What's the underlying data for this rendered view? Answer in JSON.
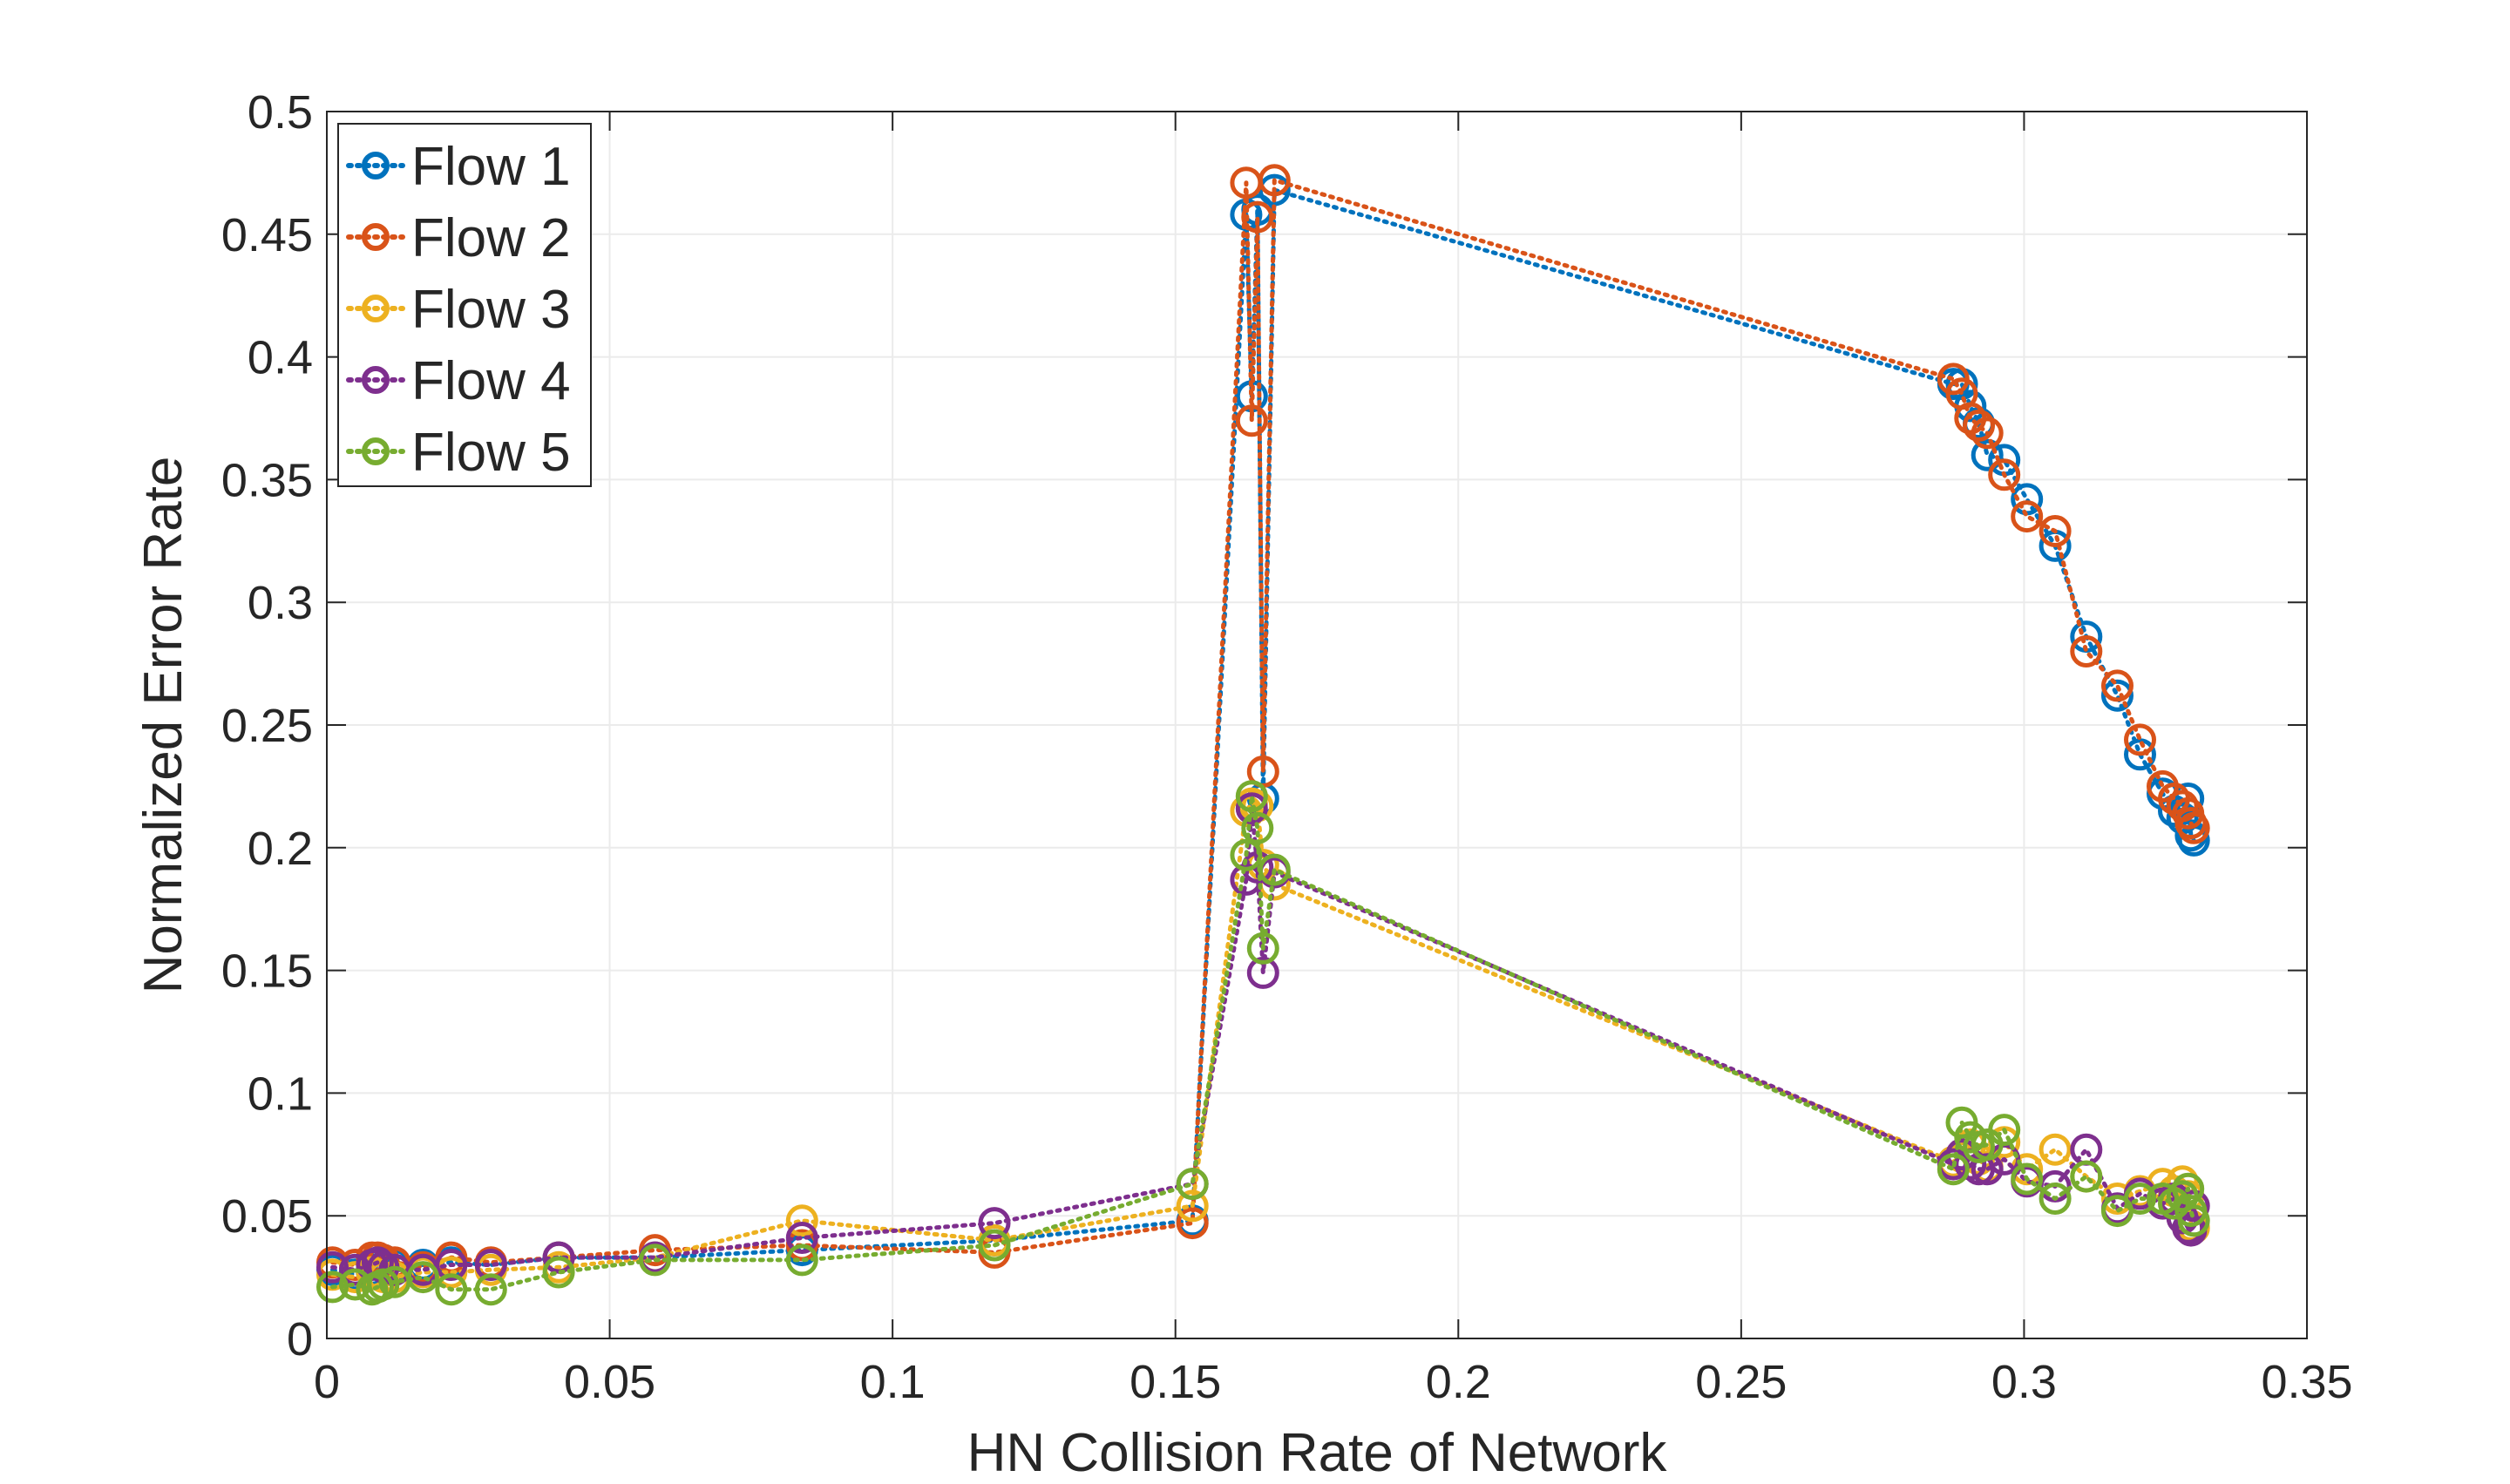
{
  "chart_data": {
    "type": "line",
    "xlabel": "HN Collision Rate of Network",
    "ylabel": "Normalized Error Rate",
    "xlim": [
      0,
      0.35
    ],
    "ylim": [
      0,
      0.5
    ],
    "xticks": [
      0,
      0.05,
      0.1,
      0.15,
      0.2,
      0.25,
      0.3,
      0.35
    ],
    "xtick_labels": [
      "0",
      "0.05",
      "0.1",
      "0.15",
      "0.2",
      "0.25",
      "0.3",
      "0.35"
    ],
    "yticks": [
      0,
      0.05,
      0.1,
      0.15,
      0.2,
      0.25,
      0.3,
      0.35,
      0.4,
      0.45,
      0.5
    ],
    "ytick_labels": [
      "0",
      "0.05",
      "0.1",
      "0.15",
      "0.2",
      "0.25",
      "0.3",
      "0.35",
      "0.4",
      "0.45",
      "0.5"
    ],
    "grid": true,
    "legend_position": "top-left",
    "line_style": "dotted",
    "marker": "circle",
    "series": [
      {
        "name": "Flow 1",
        "color": "#0072BD",
        "x": [
          0.001,
          0.005,
          0.008,
          0.009,
          0.01,
          0.012,
          0.017,
          0.022,
          0.029,
          0.041,
          0.058,
          0.084,
          0.118,
          0.153,
          0.1625,
          0.1635,
          0.1645,
          0.1655,
          0.1675,
          0.2875,
          0.289,
          0.2905,
          0.292,
          0.2935,
          0.2965,
          0.3005,
          0.3055,
          0.311,
          0.3165,
          0.3205,
          0.3245,
          0.3265,
          0.328,
          0.329,
          0.3295,
          0.33
        ],
        "y": [
          0.028,
          0.026,
          0.028,
          0.03,
          0.032,
          0.03,
          0.03,
          0.031,
          0.03,
          0.033,
          0.033,
          0.036,
          0.04,
          0.048,
          0.458,
          0.384,
          0.46,
          0.22,
          0.468,
          0.389,
          0.389,
          0.38,
          0.373,
          0.36,
          0.358,
          0.342,
          0.323,
          0.286,
          0.262,
          0.238,
          0.222,
          0.215,
          0.212,
          0.22,
          0.205,
          0.203
        ]
      },
      {
        "name": "Flow 2",
        "color": "#D95319",
        "x": [
          0.001,
          0.005,
          0.008,
          0.009,
          0.01,
          0.012,
          0.017,
          0.022,
          0.029,
          0.041,
          0.058,
          0.084,
          0.118,
          0.153,
          0.1625,
          0.1635,
          0.1645,
          0.1655,
          0.1675,
          0.2875,
          0.289,
          0.2905,
          0.292,
          0.2935,
          0.2965,
          0.3005,
          0.3055,
          0.311,
          0.3165,
          0.3205,
          0.3245,
          0.3265,
          0.328,
          0.329,
          0.3295,
          0.33
        ],
        "y": [
          0.031,
          0.03,
          0.033,
          0.033,
          0.032,
          0.031,
          0.029,
          0.033,
          0.031,
          0.033,
          0.036,
          0.038,
          0.035,
          0.047,
          0.471,
          0.374,
          0.457,
          0.231,
          0.472,
          0.391,
          0.385,
          0.375,
          0.372,
          0.369,
          0.352,
          0.335,
          0.329,
          0.28,
          0.266,
          0.244,
          0.225,
          0.22,
          0.217,
          0.214,
          0.21,
          0.208
        ]
      },
      {
        "name": "Flow 3",
        "color": "#EDB120",
        "x": [
          0.001,
          0.005,
          0.008,
          0.009,
          0.01,
          0.012,
          0.017,
          0.022,
          0.029,
          0.041,
          0.058,
          0.084,
          0.118,
          0.153,
          0.1625,
          0.1635,
          0.1645,
          0.1655,
          0.1675,
          0.2875,
          0.289,
          0.2905,
          0.292,
          0.2935,
          0.2965,
          0.3005,
          0.3055,
          0.311,
          0.3165,
          0.3205,
          0.3245,
          0.3265,
          0.328,
          0.329,
          0.3295,
          0.33
        ],
        "y": [
          0.026,
          0.025,
          0.027,
          0.026,
          0.025,
          0.025,
          0.027,
          0.027,
          0.028,
          0.029,
          0.033,
          0.048,
          0.04,
          0.054,
          0.215,
          0.218,
          0.217,
          0.193,
          0.185,
          0.072,
          0.074,
          0.079,
          0.073,
          0.07,
          0.08,
          0.069,
          0.077,
          0.066,
          0.057,
          0.06,
          0.063,
          0.06,
          0.064,
          0.058,
          0.046,
          0.045
        ]
      },
      {
        "name": "Flow 4",
        "color": "#7E2F8E",
        "x": [
          0.001,
          0.005,
          0.008,
          0.009,
          0.01,
          0.012,
          0.017,
          0.022,
          0.029,
          0.041,
          0.058,
          0.084,
          0.118,
          0.153,
          0.1625,
          0.1635,
          0.1645,
          0.1655,
          0.1675,
          0.2875,
          0.289,
          0.2905,
          0.292,
          0.2935,
          0.2965,
          0.3005,
          0.3055,
          0.311,
          0.3165,
          0.3205,
          0.3245,
          0.3265,
          0.328,
          0.329,
          0.3295,
          0.33
        ],
        "y": [
          0.029,
          0.028,
          0.03,
          0.031,
          0.029,
          0.028,
          0.028,
          0.03,
          0.03,
          0.033,
          0.033,
          0.041,
          0.047,
          0.063,
          0.187,
          0.216,
          0.192,
          0.149,
          0.19,
          0.071,
          0.075,
          0.071,
          0.069,
          0.069,
          0.073,
          0.064,
          0.062,
          0.077,
          0.053,
          0.059,
          0.055,
          0.057,
          0.049,
          0.045,
          0.044,
          0.054
        ]
      },
      {
        "name": "Flow 5",
        "color": "#77AC30",
        "x": [
          0.001,
          0.005,
          0.008,
          0.009,
          0.01,
          0.012,
          0.017,
          0.022,
          0.029,
          0.041,
          0.058,
          0.084,
          0.118,
          0.153,
          0.1625,
          0.1635,
          0.1645,
          0.1655,
          0.1675,
          0.2875,
          0.289,
          0.2905,
          0.292,
          0.2935,
          0.2965,
          0.3005,
          0.3055,
          0.311,
          0.3165,
          0.3205,
          0.3245,
          0.3265,
          0.328,
          0.329,
          0.3295,
          0.33
        ],
        "y": [
          0.021,
          0.022,
          0.02,
          0.021,
          0.022,
          0.023,
          0.025,
          0.02,
          0.02,
          0.027,
          0.032,
          0.032,
          0.038,
          0.063,
          0.197,
          0.221,
          0.208,
          0.159,
          0.191,
          0.069,
          0.088,
          0.082,
          0.078,
          0.079,
          0.085,
          0.065,
          0.057,
          0.066,
          0.052,
          0.057,
          0.057,
          0.055,
          0.058,
          0.061,
          0.052,
          0.048
        ]
      }
    ]
  }
}
